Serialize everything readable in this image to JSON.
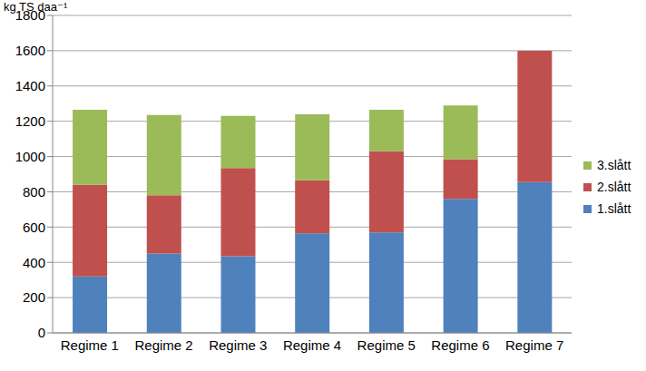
{
  "chart_data": {
    "type": "bar",
    "stacked": true,
    "y_label": "kg TS daa⁻¹",
    "categories": [
      "Regime 1",
      "Regime 2",
      "Regime 3",
      "Regime 4",
      "Regime 5",
      "Regime 6",
      "Regime 7"
    ],
    "series": [
      {
        "name": "1.slått",
        "color": "#4f81bd",
        "values": [
          320,
          450,
          435,
          565,
          570,
          760,
          855
        ]
      },
      {
        "name": "2.slått",
        "color": "#c0504d",
        "values": [
          520,
          330,
          500,
          300,
          460,
          225,
          745
        ]
      },
      {
        "name": "3.slått",
        "color": "#9bbb59",
        "values": [
          425,
          455,
          295,
          375,
          235,
          305,
          null
        ]
      }
    ],
    "ylim": [
      0,
      1800
    ],
    "yticks": [
      0,
      200,
      400,
      600,
      800,
      1000,
      1200,
      1400,
      1600,
      1800
    ],
    "grid": true,
    "legend": "right"
  }
}
